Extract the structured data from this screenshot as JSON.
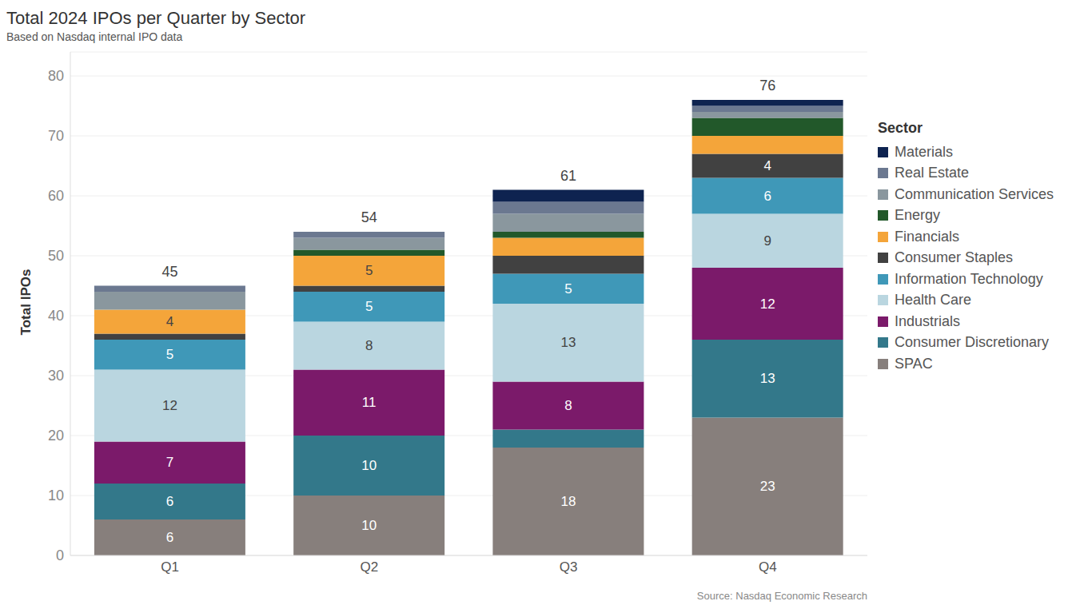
{
  "chart_data": {
    "type": "bar",
    "title": "Total 2024 IPOs per Quarter by Sector",
    "subtitle": "Based on Nasdaq internal IPO data",
    "source": "Source: Nasdaq Economic Research",
    "y_label": "Total IPOs",
    "legend_title": "Sector",
    "categories": [
      "Q1",
      "Q2",
      "Q3",
      "Q4"
    ],
    "series": [
      {
        "name": "SPAC",
        "color": "#877f7c",
        "values": [
          6,
          10,
          18,
          23
        ]
      },
      {
        "name": "Consumer Discretionary",
        "color": "#33788a",
        "values": [
          6,
          10,
          3,
          13
        ]
      },
      {
        "name": "Industrials",
        "color": "#7b1a6a",
        "values": [
          7,
          11,
          8,
          12
        ]
      },
      {
        "name": "Health Care",
        "color": "#bad6e0",
        "values": [
          12,
          8,
          13,
          9
        ]
      },
      {
        "name": "Information Technology",
        "color": "#3f98b8",
        "values": [
          5,
          5,
          5,
          6
        ]
      },
      {
        "name": "Consumer Staples",
        "color": "#414141",
        "values": [
          1,
          1,
          3,
          4
        ]
      },
      {
        "name": "Financials",
        "color": "#f4a53a",
        "values": [
          4,
          5,
          3,
          3
        ]
      },
      {
        "name": "Energy",
        "color": "#22582a",
        "values": [
          0,
          1,
          1,
          3
        ]
      },
      {
        "name": "Communication Services",
        "color": "#8a979e",
        "values": [
          3,
          2,
          3,
          1
        ]
      },
      {
        "name": "Real Estate",
        "color": "#6b7890",
        "values": [
          1,
          1,
          2,
          1
        ]
      },
      {
        "name": "Materials",
        "color": "#0e2350",
        "values": [
          0,
          0,
          2,
          1
        ]
      }
    ],
    "totals": [
      45,
      54,
      61,
      76
    ],
    "ylim": [
      0,
      84
    ],
    "yticks": [
      0,
      10,
      20,
      30,
      40,
      50,
      60,
      70,
      80
    ],
    "stacked": true,
    "data_labels": true,
    "grid": true,
    "legend": "right"
  }
}
